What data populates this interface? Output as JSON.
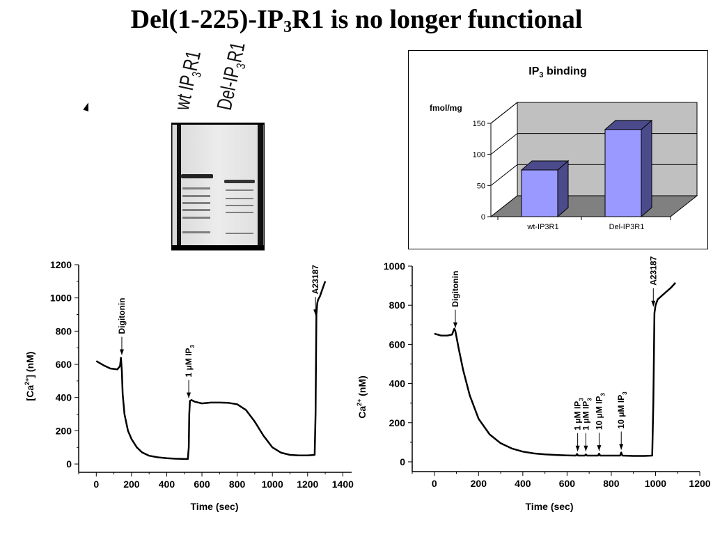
{
  "slide": {
    "title_pre": "Del(1-225)-IP",
    "title_sub": "3",
    "title_post": "R1 is no longer functional"
  },
  "blot": {
    "lane1_pre": "wt IP",
    "lane1_sub": "3",
    "lane1_post": "R1",
    "lane2_pre": "Del-IP",
    "lane2_sub": "3",
    "lane2_post": "R1"
  },
  "chart_data": [
    {
      "type": "bar",
      "title_pre": "IP",
      "title_sub": "3",
      "title_post": " binding",
      "ylabel": "fmol/mg",
      "categories": [
        "wt-IP3R1",
        "Del-IP3R1"
      ],
      "values": [
        75,
        140
      ],
      "ylim": [
        0,
        150
      ],
      "yticks": [
        0,
        50,
        100,
        150
      ],
      "bar_color": "#9999ff",
      "bar_side_color": "#4b4b8c",
      "wall_color": "#c0c0c0",
      "floor_color": "#808080"
    },
    {
      "type": "line",
      "xlabel": "Time (sec)",
      "ylabel_pre": "[Ca",
      "ylabel_sup": "2+",
      "ylabel_post": "] (nM)",
      "xlim": [
        -100,
        1450
      ],
      "ylim": [
        -50,
        1200
      ],
      "xticks": [
        0,
        200,
        400,
        600,
        800,
        1000,
        1200,
        1400
      ],
      "yticks": [
        0,
        200,
        400,
        600,
        800,
        1000,
        1200
      ],
      "series": [
        {
          "x": [
            0,
            40,
            80,
            120,
            135,
            140,
            145,
            150,
            160,
            180,
            200,
            230,
            260,
            300,
            350,
            400,
            450,
            500,
            520,
            525,
            528,
            532,
            540,
            560,
            600,
            650,
            700,
            750,
            800,
            850,
            900,
            950,
            1000,
            1050,
            1100,
            1150,
            1200,
            1240,
            1245,
            1250,
            1255,
            1260,
            1270,
            1280,
            1290,
            1300
          ],
          "y": [
            620,
            595,
            575,
            570,
            590,
            640,
            560,
            420,
            300,
            200,
            150,
            100,
            70,
            50,
            40,
            35,
            32,
            30,
            30,
            100,
            300,
            380,
            385,
            375,
            365,
            370,
            370,
            368,
            360,
            325,
            255,
            170,
            100,
            68,
            55,
            52,
            52,
            55,
            300,
            900,
            970,
            990,
            1010,
            1040,
            1070,
            1100
          ]
        }
      ],
      "annotations": [
        {
          "x": 145,
          "y": 640,
          "label": "Digitonin"
        },
        {
          "x": 525,
          "y": 380,
          "label_pre": "1 μM IP",
          "label_sub": "3"
        },
        {
          "x": 1245,
          "y": 880,
          "label": "A23187"
        }
      ]
    },
    {
      "type": "line",
      "xlabel": "Time (sec)",
      "ylabel_pre": "Ca",
      "ylabel_sup": "2+",
      "ylabel_post": " (nM)",
      "xlim": [
        -100,
        1200
      ],
      "ylim": [
        -50,
        1000
      ],
      "xticks": [
        0,
        200,
        400,
        600,
        800,
        1000,
        1200
      ],
      "yticks": [
        0,
        200,
        400,
        600,
        800,
        1000
      ],
      "series": [
        {
          "x": [
            0,
            30,
            60,
            80,
            90,
            95,
            100,
            110,
            130,
            160,
            200,
            250,
            300,
            350,
            400,
            450,
            500,
            550,
            600,
            640,
            645,
            650,
            680,
            685,
            690,
            740,
            745,
            750,
            840,
            845,
            850,
            900,
            950,
            985,
            990,
            995,
            1000,
            1010,
            1030,
            1050,
            1070,
            1090
          ],
          "y": [
            655,
            645,
            645,
            650,
            680,
            670,
            640,
            580,
            470,
            340,
            220,
            140,
            95,
            68,
            52,
            43,
            38,
            35,
            33,
            32,
            40,
            32,
            32,
            38,
            32,
            32,
            42,
            32,
            32,
            48,
            32,
            30,
            30,
            32,
            300,
            760,
            800,
            830,
            850,
            870,
            890,
            915
          ]
        }
      ],
      "annotations": [
        {
          "x": 95,
          "y": 670,
          "label": "Digitonin"
        },
        {
          "x": 648,
          "y": 40,
          "label_pre": "1 μM IP",
          "label_sub": "3"
        },
        {
          "x": 685,
          "y": 40,
          "label_pre": "1 μM IP",
          "label_sub": "3"
        },
        {
          "x": 745,
          "y": 42,
          "label_pre": "10 μM IP",
          "label_sub": "3"
        },
        {
          "x": 845,
          "y": 48,
          "label_pre": "10 μM IP",
          "label_sub": "3"
        },
        {
          "x": 990,
          "y": 780,
          "label": "A23187"
        }
      ]
    }
  ]
}
